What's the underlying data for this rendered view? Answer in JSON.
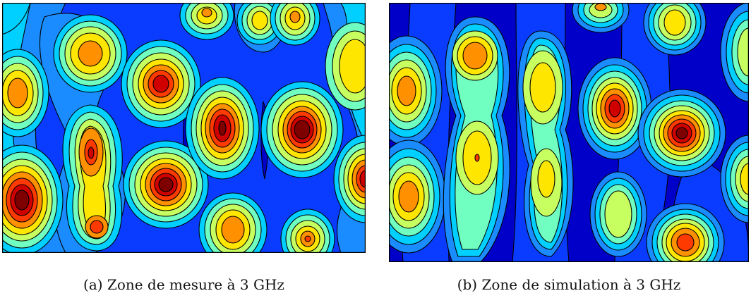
{
  "figure": {
    "panels": [
      {
        "caption": "(a) Zone de mesure à 3 GHz"
      },
      {
        "caption": "(b) Zone de simulation à 3 GHz"
      }
    ]
  },
  "colormap": [
    "#00007f",
    "#0000c8",
    "#0a3cff",
    "#1a8cff",
    "#00d0ff",
    "#70ffc0",
    "#c8ff60",
    "#ffe600",
    "#ff9000",
    "#ff3a00",
    "#d00000",
    "#7f0000"
  ]
}
